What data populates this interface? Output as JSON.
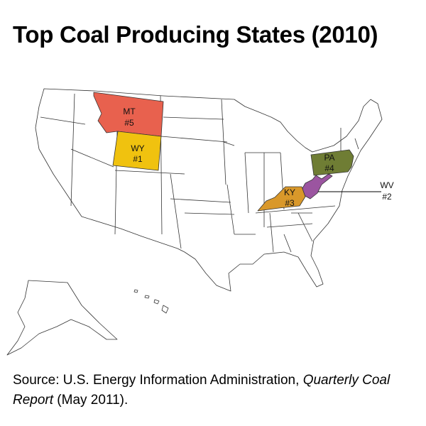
{
  "title": "Top Coal Producing States (2010)",
  "states": [
    {
      "abbr": "WY",
      "rank": "#1",
      "color": "#f0c20f"
    },
    {
      "abbr": "WV",
      "rank": "#2",
      "color": "#9b55a0"
    },
    {
      "abbr": "KY",
      "rank": "#3",
      "color": "#d9982a"
    },
    {
      "abbr": "PA",
      "rank": "#4",
      "color": "#6f7d34"
    },
    {
      "abbr": "MT",
      "rank": "#5",
      "color": "#e8614e"
    }
  ],
  "source": {
    "prefix": "Source: U.S. Energy Information Administration, ",
    "publication": "Quarterly Coal Report",
    "suffix": " (May 2011)."
  }
}
